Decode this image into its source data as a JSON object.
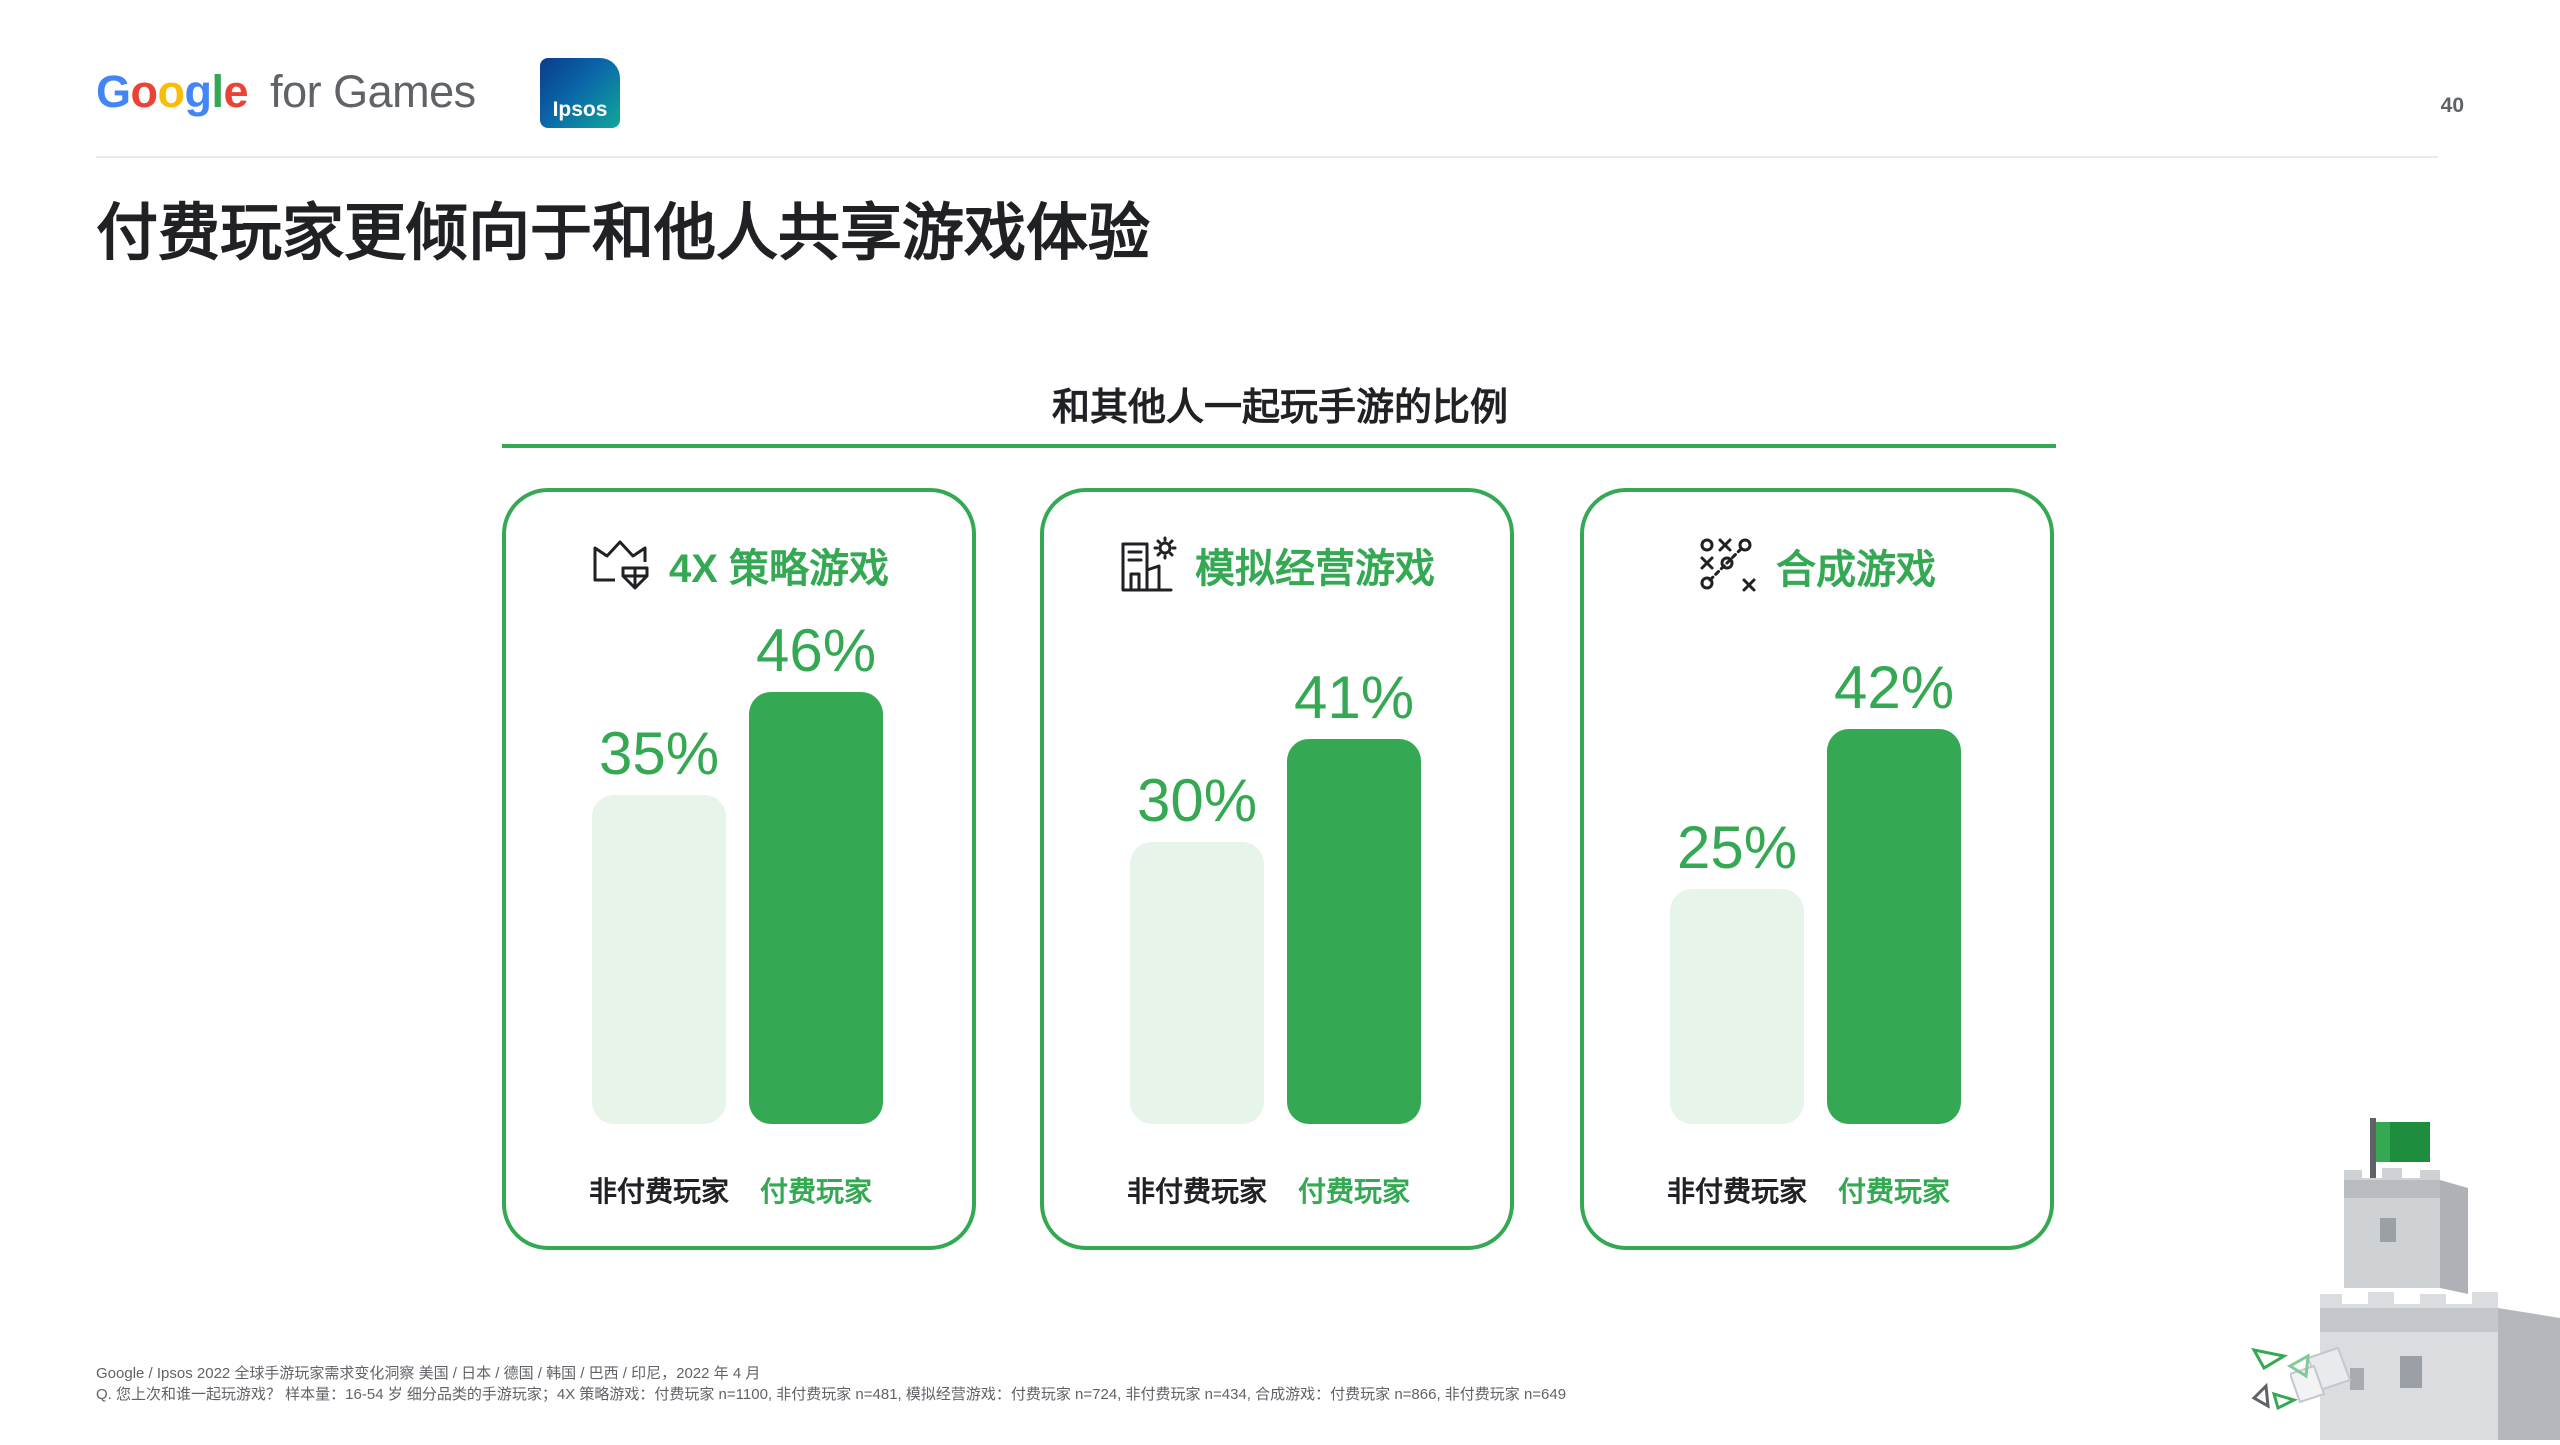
{
  "header": {
    "logo_google": "Google",
    "logo_suffix": "for Games",
    "partner_logo": "Ipsos",
    "page_number": "40"
  },
  "title": "付费玩家更倾向于和他人共享游戏体验",
  "colors": {
    "accent": "#34a853",
    "light_bar": "#e6f4ea"
  },
  "chart_data": {
    "type": "bar",
    "title": "和其他人一起玩手游的比例",
    "ylim": [
      0,
      50
    ],
    "unit": "%",
    "categories": [
      "非付费玩家",
      "付费玩家"
    ],
    "panels": [
      {
        "name": "4X 策略游戏",
        "icon": "strategy-crown-icon",
        "values": [
          35,
          46
        ],
        "labels": [
          "35%",
          "46%"
        ]
      },
      {
        "name": "模拟经营游戏",
        "icon": "simulation-building-icon",
        "values": [
          30,
          41
        ],
        "labels": [
          "30%",
          "41%"
        ]
      },
      {
        "name": "合成游戏",
        "icon": "merge-xo-icon",
        "values": [
          25,
          42
        ],
        "labels": [
          "25%",
          "42%"
        ]
      }
    ]
  },
  "footnotes": {
    "source": "Google / Ipsos 2022 全球手游玩家需求变化洞察 美国 / 日本 / 德国 / 韩国 / 巴西 / 印尼，2022 年 4 月",
    "question": "Q. 您上次和谁一起玩游戏？ 样本量：16-54 岁 细分品类的手游玩家；4X 策略游戏：付费玩家 n=1100, 非付费玩家 n=481, 模拟经营游戏：付费玩家 n=724, 非付费玩家 n=434, 合成游戏：付费玩家 n=866, 非付费玩家 n=649"
  }
}
